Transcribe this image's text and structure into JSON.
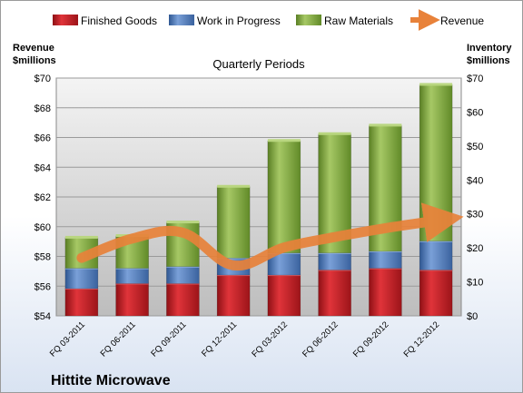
{
  "chart_data": {
    "type": "bar",
    "subtitle": "Quarterly Periods",
    "company": "Hittite Microwave",
    "left_axis_title": [
      "Revenue",
      "$millions"
    ],
    "right_axis_title": [
      "Inventory",
      "$millions"
    ],
    "categories": [
      "FQ 03-2011",
      "FQ 06-2011",
      "FQ 09-2011",
      "FQ 12-2011",
      "FQ 03-2012",
      "FQ 06-2012",
      "FQ 09-2012",
      "FQ 12-2012"
    ],
    "left_ticks": [
      "$54",
      "$56",
      "$58",
      "$60",
      "$62",
      "$64",
      "$66",
      "$68",
      "$70"
    ],
    "right_ticks": [
      "$0",
      "$10",
      "$20",
      "$30",
      "$40",
      "$50",
      "$60",
      "$70"
    ],
    "left_ylim": [
      54,
      70
    ],
    "right_ylim": [
      0,
      70
    ],
    "grid": true,
    "legend_position": "top",
    "series": [
      {
        "name": "Finished Goods",
        "axis": "right",
        "color": "#c0272d",
        "values": [
          8,
          9.5,
          9.5,
          12,
          12,
          13.5,
          14,
          13.5
        ]
      },
      {
        "name": "Work in Progress",
        "axis": "right",
        "color": "#4f7bc0",
        "values": [
          6,
          4.5,
          5,
          5,
          6.5,
          5,
          5,
          8.5
        ]
      },
      {
        "name": "Raw Materials",
        "axis": "right",
        "color": "#8db34a",
        "values": [
          9,
          9.5,
          13,
          21,
          33,
          35,
          37,
          46
        ]
      },
      {
        "name": "Revenue",
        "axis": "left",
        "type": "line",
        "color": "#e8823a",
        "values": [
          57.9,
          59.2,
          59.6,
          57.4,
          58.6,
          59.3,
          59.9,
          60.4
        ]
      }
    ]
  }
}
